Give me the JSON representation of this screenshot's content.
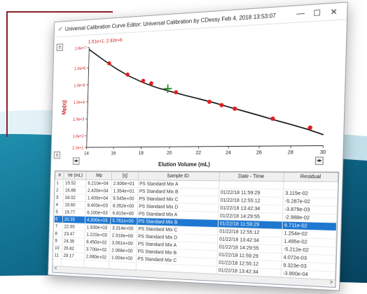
{
  "window": {
    "title": "Universal Calibration Curve Editor: Universal Calibration by CDessy  Feb 4, 2018  13:53:07",
    "minimize": "—",
    "maximize": "☐",
    "close": "✕"
  },
  "chart_nav": {
    "left": "◂▸",
    "right": "◂▸"
  },
  "chart_data": {
    "type": "scatter",
    "annotation": "1.51e+1, 2.92e+6",
    "ylabel": "Mp[η]",
    "xlabel": "Elution Volume (mL)",
    "yscale": "log",
    "yticks": [
      "1.6e+7",
      "1.0e+6",
      "1.0e+5",
      "1.0e+4",
      "1.0e+3",
      "1.0e+2",
      "2.1e+1"
    ],
    "xticks": [
      14,
      16,
      18,
      20,
      22,
      24,
      26,
      28,
      30
    ],
    "xlim": [
      14,
      30
    ],
    "points": [
      {
        "x": 15.52,
        "y": 1620000
      },
      {
        "x": 16.88,
        "y": 325000
      },
      {
        "x": 18.02,
        "y": 131000
      },
      {
        "x": 18.6,
        "y": 89700
      },
      {
        "x": 19.77,
        "y": 41600
      },
      {
        "x": 20.35,
        "y": 25000
      },
      {
        "x": 22.65,
        "y": 6440
      },
      {
        "x": 23.47,
        "y": 4050
      },
      {
        "x": 24.35,
        "y": 2460
      },
      {
        "x": 26.82,
        "y": 636
      },
      {
        "x": 29.17,
        "y": 192
      }
    ],
    "selected_index": 4,
    "curve": [
      [
        14,
        12000000
      ],
      [
        15,
        3000000
      ],
      [
        16,
        800000
      ],
      [
        17,
        260000
      ],
      [
        18,
        105000
      ],
      [
        19,
        50000
      ],
      [
        20,
        28000
      ],
      [
        21,
        16000
      ],
      [
        22,
        9500
      ],
      [
        23,
        5500
      ],
      [
        24,
        3000
      ],
      [
        25,
        1700
      ],
      [
        26,
        950
      ],
      [
        27,
        520
      ],
      [
        28,
        290
      ],
      [
        29,
        160
      ],
      [
        30,
        80
      ]
    ]
  },
  "grid": {
    "headers": [
      "#",
      "Ve (mL)",
      "Mp",
      "[η]",
      "Sample ID",
      "Date - Time",
      "Residual"
    ],
    "rows": [
      [
        "1",
        "15.52",
        "6.210e+04",
        "2.606e+01",
        "PS Standard Mix A",
        "",
        ""
      ],
      [
        "2",
        "16.88",
        "2.420e+04",
        "1.354e+01",
        "PS Standard Mix B",
        "01/22/18 11:59:29",
        "3.115e-02"
      ],
      [
        "3",
        "18.02",
        "1.400e+04",
        "9.545e+00",
        "PS Standard Mix C",
        "01/22/18 12:55:12",
        "-5.287e-02"
      ],
      [
        "4",
        "18.60",
        "9.400e+03",
        "8.352e+00",
        "PS Standard Mix D",
        "01/22/18 13:42:34",
        "-3.879e-03"
      ],
      [
        "5",
        "19.77",
        "6.100e+03",
        "6.815e+00",
        "PS Standard Mix A",
        "01/22/18 14:29:55",
        "-2.988e-02"
      ],
      [
        "6",
        "20.35",
        "4.300e+03",
        "5.761e+00",
        "PS Standard Mix B",
        "01/22/18 11:59:29",
        "6.711e-02"
      ],
      [
        "7",
        "22.65",
        "1.930e+03",
        "3.314e+00",
        "PS Standard Mix C",
        "01/22/18 12:55:12",
        "1.254e-02"
      ],
      [
        "8",
        "23.47",
        "1.220e+03",
        "2.918e+00",
        "PS Standard Mix D",
        "01/22/18 13:42:34",
        "1.495e-02"
      ],
      [
        "9",
        "24.35",
        "8.450e+02",
        "3.061e+00",
        "PS Standard Mix A",
        "01/22/18 14:29:55",
        "-5.212e-02"
      ],
      [
        "10",
        "26.82",
        "3.700e+02",
        "2.068e+00",
        "PS Standard Mix B",
        "01/22/18 11:59:29",
        "4.072e-03"
      ],
      [
        "11",
        "29.17",
        "2.080e+02",
        "1.004e+00",
        "PS Standard Mix C",
        "01/22/18 12:55:12",
        "9.323e-03"
      ],
      [
        "",
        "",
        "",
        "",
        "",
        "01/22/18 13:42:34",
        "-3.900e-04"
      ]
    ],
    "selected_row": 5,
    "scroll_left": "<",
    "scroll_right": ">"
  }
}
